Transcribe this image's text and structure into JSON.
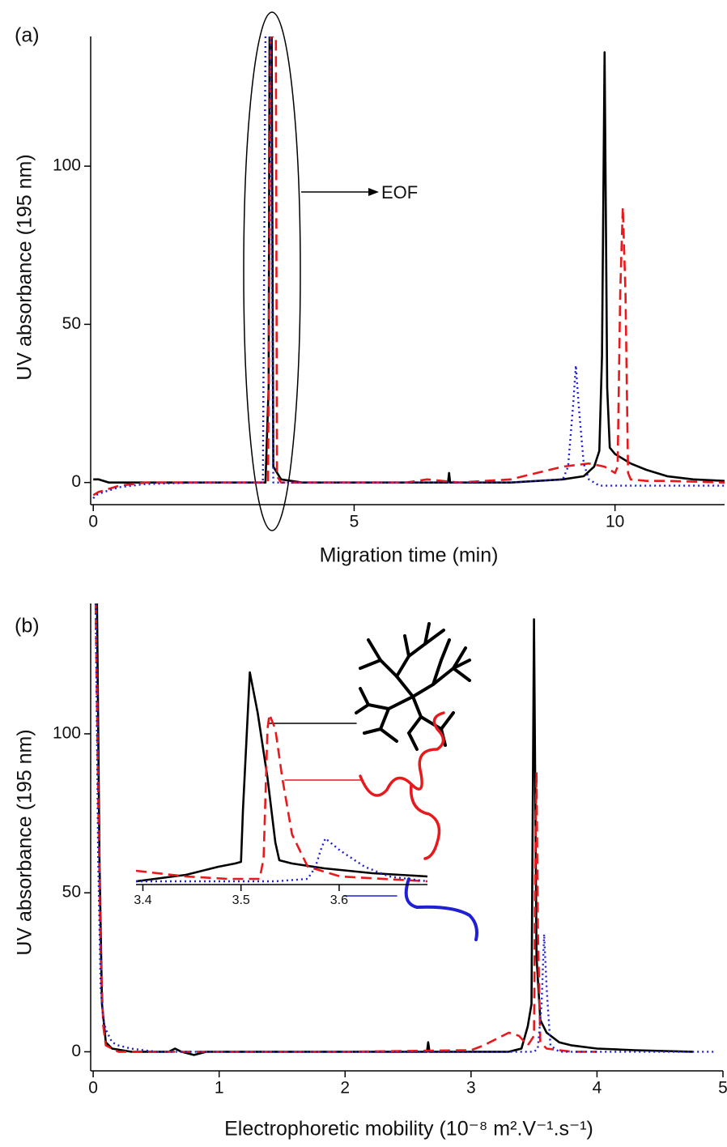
{
  "chart_data": [
    {
      "type": "line",
      "panel_label": "(a)",
      "xlabel": "Migration time (min)",
      "ylabel": "UV absorbance (195 nm)",
      "annotation": "EOF",
      "xlim": [
        -0.05,
        12.1
      ],
      "ylim": [
        -7,
        141
      ],
      "xticks": [
        0,
        5,
        10
      ],
      "yticks": [
        0,
        50,
        100
      ],
      "series": [
        {
          "color": "#000000",
          "style": "solid",
          "x": [
            0,
            0.1,
            0.3,
            1,
            2,
            3,
            3.3,
            3.36,
            3.38,
            3.42,
            3.45,
            3.6,
            4,
            5,
            6,
            6.8,
            6.82,
            6.84,
            7,
            8,
            9,
            9.4,
            9.6,
            9.7,
            9.75,
            9.8,
            9.85,
            9.9,
            10,
            10.3,
            10.6,
            11,
            11.5,
            12.1
          ],
          "values": [
            1,
            1,
            0,
            0,
            0,
            0,
            0,
            30,
            141,
            141,
            5,
            1,
            0,
            0,
            0,
            0,
            3,
            0,
            0,
            0,
            1,
            2,
            5,
            10,
            40,
            136,
            30,
            11,
            9,
            6,
            4,
            2,
            1,
            0.5
          ]
        },
        {
          "color": "#e8191c",
          "style": "dashed",
          "x": [
            0,
            0.1,
            0.5,
            1,
            2,
            3,
            3.35,
            3.4,
            3.43,
            3.5,
            3.52,
            3.6,
            4,
            5,
            6,
            6.4,
            7,
            8,
            8.5,
            9,
            9.5,
            9.8,
            10,
            10.05,
            10.1,
            10.15,
            10.2,
            10.25,
            10.3,
            10.6,
            11,
            12.1
          ],
          "values": [
            -4,
            -3,
            -1,
            0,
            0,
            0,
            0,
            141,
            141,
            141,
            2,
            0,
            0,
            0,
            0,
            1,
            0,
            1,
            3,
            5,
            6,
            5,
            3,
            5,
            60,
            87,
            60,
            3,
            1,
            0.5,
            0.5,
            0
          ]
        },
        {
          "color": "#1f1fd6",
          "style": "dotted",
          "x": [
            0,
            0.05,
            0.2,
            0.5,
            1,
            2,
            3,
            3.25,
            3.3,
            3.35,
            3.4,
            3.45,
            3.6,
            4,
            6,
            8,
            9,
            9.1,
            9.2,
            9.25,
            9.3,
            9.4,
            9.5,
            9.7,
            10,
            11,
            12.1
          ],
          "values": [
            -5,
            -4,
            -3,
            -1.5,
            -0.5,
            0,
            0,
            0,
            141,
            141,
            141,
            0,
            0,
            0,
            0,
            0,
            1,
            5,
            25,
            37,
            25,
            6,
            1,
            -1,
            -1,
            -1,
            -1
          ]
        }
      ]
    },
    {
      "type": "line",
      "panel_label": "(b)",
      "xlabel": "Electrophoretic mobility (10⁻⁸ m².V⁻¹.s⁻¹)",
      "ylabel": "UV absorbance (195 nm)",
      "xlim": [
        -0.02,
        5
      ],
      "ylim": [
        -6,
        141
      ],
      "xticks": [
        0,
        1,
        2,
        3,
        4,
        5
      ],
      "yticks": [
        0,
        50,
        100
      ],
      "series": [
        {
          "color": "#000000",
          "style": "solid",
          "x": [
            0.03,
            0.05,
            0.07,
            0.1,
            0.15,
            0.3,
            0.6,
            0.65,
            0.7,
            0.8,
            0.9,
            1.5,
            2.5,
            2.65,
            2.66,
            2.67,
            3,
            3.3,
            3.4,
            3.45,
            3.48,
            3.5,
            3.52,
            3.55,
            3.6,
            3.7,
            3.8,
            4,
            4.3,
            4.76
          ],
          "values": [
            141,
            60,
            15,
            3,
            1,
            0,
            0,
            1,
            0,
            -1,
            0,
            0,
            0,
            0,
            3,
            0,
            0,
            0,
            1,
            8,
            15,
            136,
            30,
            10,
            6,
            3,
            2,
            1,
            0.5,
            0
          ]
        },
        {
          "color": "#e8191c",
          "style": "dashed",
          "x": [
            0.02,
            0.04,
            0.06,
            0.08,
            0.1,
            0.2,
            0.5,
            1,
            2,
            3,
            3.1,
            3.2,
            3.3,
            3.38,
            3.45,
            3.5,
            3.51,
            3.52,
            3.53,
            3.55,
            3.6,
            3.7,
            3.8,
            4
          ],
          "values": [
            141,
            80,
            30,
            8,
            2,
            0,
            0,
            0,
            0,
            0.5,
            2,
            4,
            6,
            5,
            2,
            5,
            60,
            88,
            40,
            3,
            1,
            0.5,
            0,
            0
          ]
        },
        {
          "color": "#1f1fd6",
          "style": "dotted",
          "x": [
            0.02,
            0.04,
            0.06,
            0.08,
            0.1,
            0.15,
            0.2,
            0.3,
            0.5,
            1,
            2,
            3,
            3.4,
            3.5,
            3.53,
            3.56,
            3.58,
            3.6,
            3.63,
            3.7,
            4,
            4.95
          ],
          "values": [
            141,
            60,
            20,
            10,
            7,
            3,
            2,
            1,
            0,
            0,
            0,
            0,
            0,
            0,
            1,
            15,
            37,
            20,
            2,
            0,
            0,
            0
          ]
        }
      ]
    },
    {
      "type": "line",
      "xlim": [
        3.393,
        3.69
      ],
      "ylim": [
        0,
        135
      ],
      "xticks": [
        3.4,
        3.5,
        3.6
      ],
      "series": [
        {
          "color": "#000000",
          "style": "solid",
          "x": [
            3.393,
            3.444,
            3.477,
            3.494,
            3.5,
            3.502,
            3.509,
            3.517,
            3.527,
            3.535,
            3.539,
            3.552,
            3.585,
            3.634,
            3.69
          ],
          "values": [
            2,
            6,
            11,
            13,
            14,
            46,
            131,
            106,
            66,
            26,
            15,
            13,
            10,
            7,
            5
          ]
        },
        {
          "color": "#e8191c",
          "style": "dashed",
          "x": [
            3.393,
            3.444,
            3.486,
            3.519,
            3.523,
            3.527,
            3.529,
            3.535,
            3.542,
            3.552,
            3.568,
            3.601,
            3.69
          ],
          "values": [
            8.5,
            5,
            3.5,
            3.5,
            16,
            96,
            105,
            96,
            66,
            31,
            11,
            5,
            2
          ]
        },
        {
          "color": "#1f1fd6",
          "style": "dotted",
          "x": [
            3.393,
            3.535,
            3.568,
            3.576,
            3.581,
            3.586,
            3.601,
            3.626,
            3.651,
            3.69
          ],
          "values": [
            2,
            2,
            3.5,
            11,
            21,
            28.5,
            21,
            11,
            5,
            2
          ]
        }
      ]
    }
  ]
}
